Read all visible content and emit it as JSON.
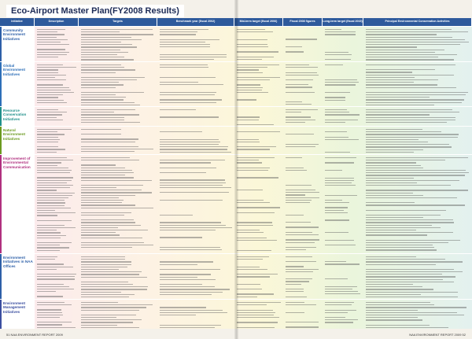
{
  "header": {
    "title": "Eco-Airport Master Plan(FY2008 Results)"
  },
  "columns": [
    "Initiative",
    "Description",
    "Targets",
    "Benchmark year (fiscal 2002)",
    "Mid-term target (fiscal 2006)",
    "Fiscal 2008 figures",
    "Long-term target (fiscal 2015)",
    "Principal Environmental Conservation Activities"
  ],
  "sections": [
    "Community Environment Initiatives",
    "Global Environment Initiatives",
    "Resource Conservation Initiatives",
    "Natural Environment Initiatives",
    "Improvement of Environmental Communication",
    "Environment Initiatives in NAA Offices",
    "Environment Management Initiatives"
  ],
  "footer": {
    "left": "51  NAA ENVIRONMENT REPORT 2009",
    "right": "NAA ENVIRONMENT REPORT 2009  52"
  }
}
